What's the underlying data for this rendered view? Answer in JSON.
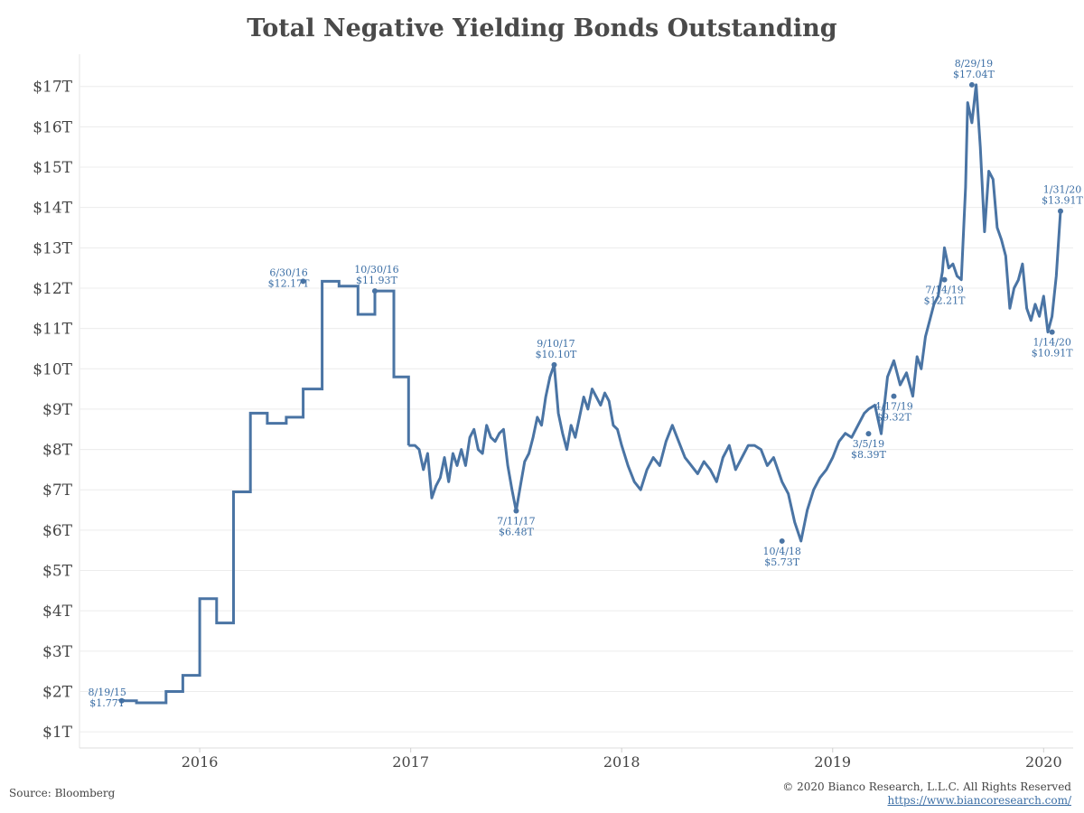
{
  "source": "Source: Bloomberg",
  "copyright": "© 2020 Bianco Research, L.L.C. All Rights Reserved",
  "website": "https://www.biancoresearch.com/",
  "chart_data": {
    "type": "line",
    "title": "Total Negative Yielding Bonds Outstanding",
    "xlabel": "",
    "ylabel": "",
    "ylim": [
      0.6,
      17.8
    ],
    "xlim": [
      2015.43,
      2020.14
    ],
    "line_color": "#4a74a4",
    "y_ticks": [
      {
        "value": 1,
        "label": "$1T"
      },
      {
        "value": 2,
        "label": "$2T"
      },
      {
        "value": 3,
        "label": "$3T"
      },
      {
        "value": 4,
        "label": "$4T"
      },
      {
        "value": 5,
        "label": "$5T"
      },
      {
        "value": 6,
        "label": "$6T"
      },
      {
        "value": 7,
        "label": "$7T"
      },
      {
        "value": 8,
        "label": "$8T"
      },
      {
        "value": 9,
        "label": "$9T"
      },
      {
        "value": 10,
        "label": "$10T"
      },
      {
        "value": 11,
        "label": "$11T"
      },
      {
        "value": 12,
        "label": "$12T"
      },
      {
        "value": 13,
        "label": "$13T"
      },
      {
        "value": 14,
        "label": "$14T"
      },
      {
        "value": 15,
        "label": "$15T"
      },
      {
        "value": 16,
        "label": "$16T"
      },
      {
        "value": 17,
        "label": "$17T"
      }
    ],
    "x_ticks": [
      {
        "value": 2016.0,
        "label": "2016"
      },
      {
        "value": 2017.0,
        "label": "2017"
      },
      {
        "value": 2018.0,
        "label": "2018"
      },
      {
        "value": 2019.0,
        "label": "2019"
      },
      {
        "value": 2020.0,
        "label": "2020"
      }
    ],
    "step_series": {
      "name": "Total Negative Yielding Bonds Outstanding (monthly, 2015-2016)",
      "x": [
        2015.63,
        2015.7,
        2015.76,
        2015.84,
        2015.92,
        2016.0,
        2016.08,
        2016.16,
        2016.24,
        2016.32,
        2016.41,
        2016.49,
        2016.58,
        2016.66,
        2016.75,
        2016.83,
        2016.92
      ],
      "y": [
        1.77,
        1.72,
        1.72,
        2.0,
        2.4,
        4.3,
        3.7,
        6.95,
        8.9,
        8.65,
        8.8,
        9.5,
        12.17,
        12.05,
        11.35,
        11.93,
        9.8
      ]
    },
    "series": [
      {
        "name": "Total Negative Yielding Bonds Outstanding (daily, 2016-2020)",
        "x": [
          2016.99,
          2017.02,
          2017.04,
          2017.06,
          2017.08,
          2017.1,
          2017.12,
          2017.14,
          2017.16,
          2017.18,
          2017.2,
          2017.22,
          2017.24,
          2017.26,
          2017.28,
          2017.3,
          2017.32,
          2017.34,
          2017.36,
          2017.38,
          2017.4,
          2017.42,
          2017.44,
          2017.46,
          2017.48,
          2017.5,
          2017.52,
          2017.54,
          2017.56,
          2017.58,
          2017.6,
          2017.62,
          2017.64,
          2017.66,
          2017.68,
          2017.7,
          2017.72,
          2017.74,
          2017.76,
          2017.78,
          2017.8,
          2017.82,
          2017.84,
          2017.86,
          2017.88,
          2017.9,
          2017.92,
          2017.94,
          2017.96,
          2017.98,
          2018.0,
          2018.03,
          2018.06,
          2018.09,
          2018.12,
          2018.15,
          2018.18,
          2018.21,
          2018.24,
          2018.27,
          2018.3,
          2018.33,
          2018.36,
          2018.39,
          2018.42,
          2018.45,
          2018.48,
          2018.51,
          2018.54,
          2018.57,
          2018.6,
          2018.63,
          2018.66,
          2018.69,
          2018.72,
          2018.76,
          2018.79,
          2018.82,
          2018.85,
          2018.88,
          2018.91,
          2018.94,
          2018.97,
          2019.0,
          2019.03,
          2019.06,
          2019.09,
          2019.12,
          2019.15,
          2019.17,
          2019.2,
          2019.23,
          2019.26,
          2019.29,
          2019.32,
          2019.35,
          2019.38,
          2019.4,
          2019.42,
          2019.44,
          2019.46,
          2019.48,
          2019.5,
          2019.52,
          2019.53,
          2019.55,
          2019.57,
          2019.59,
          2019.61,
          2019.63,
          2019.64,
          2019.66,
          2019.68,
          2019.7,
          2019.72,
          2019.74,
          2019.76,
          2019.78,
          2019.8,
          2019.82,
          2019.84,
          2019.86,
          2019.88,
          2019.9,
          2019.92,
          2019.94,
          2019.96,
          2019.98,
          2020.0,
          2020.02,
          2020.04,
          2020.06,
          2020.08
        ],
        "y": [
          8.1,
          8.1,
          8.0,
          7.5,
          7.9,
          6.8,
          7.1,
          7.3,
          7.8,
          7.2,
          7.9,
          7.6,
          8.0,
          7.6,
          8.3,
          8.5,
          8.0,
          7.9,
          8.6,
          8.3,
          8.2,
          8.4,
          8.5,
          7.6,
          7.0,
          6.48,
          7.1,
          7.7,
          7.9,
          8.3,
          8.8,
          8.6,
          9.3,
          9.8,
          10.1,
          8.9,
          8.4,
          8.0,
          8.6,
          8.3,
          8.8,
          9.3,
          9.0,
          9.5,
          9.3,
          9.1,
          9.4,
          9.2,
          8.6,
          8.5,
          8.1,
          7.6,
          7.2,
          7.0,
          7.5,
          7.8,
          7.6,
          8.2,
          8.6,
          8.2,
          7.8,
          7.6,
          7.4,
          7.7,
          7.5,
          7.2,
          7.8,
          8.1,
          7.5,
          7.8,
          8.1,
          8.1,
          8.0,
          7.6,
          7.8,
          7.2,
          6.9,
          6.2,
          5.73,
          6.5,
          7.0,
          7.3,
          7.5,
          7.8,
          8.2,
          8.4,
          8.3,
          8.6,
          8.9,
          9.0,
          9.1,
          8.39,
          9.8,
          10.2,
          9.6,
          9.9,
          9.32,
          10.3,
          10.0,
          10.8,
          11.2,
          11.6,
          11.8,
          12.4,
          13.0,
          12.5,
          12.6,
          12.3,
          12.21,
          14.5,
          16.6,
          16.1,
          17.04,
          15.5,
          13.4,
          14.9,
          14.7,
          13.5,
          13.2,
          12.8,
          11.5,
          12.0,
          12.2,
          12.6,
          11.5,
          11.2,
          11.6,
          11.3,
          11.8,
          10.91,
          11.3,
          12.3,
          13.91
        ]
      }
    ],
    "annotations": [
      {
        "date": "8/19/15",
        "value": "$1.77T",
        "x": 2015.63,
        "y": 1.77,
        "pos": "left"
      },
      {
        "date": "6/30/16",
        "value": "$12.17T",
        "x": 2016.49,
        "y": 12.17,
        "pos": "left"
      },
      {
        "date": "10/30/16",
        "value": "$11.93T",
        "x": 2016.83,
        "y": 11.93,
        "pos": "above"
      },
      {
        "date": "7/11/17",
        "value": "$6.48T",
        "x": 2017.5,
        "y": 6.48,
        "pos": "below"
      },
      {
        "date": "9/10/17",
        "value": "$10.10T",
        "x": 2017.68,
        "y": 10.1,
        "pos": "above"
      },
      {
        "date": "10/4/18",
        "value": "$5.73T",
        "x": 2018.76,
        "y": 5.73,
        "pos": "below"
      },
      {
        "date": "3/5/19",
        "value": "$8.39T",
        "x": 2019.17,
        "y": 8.39,
        "pos": "below"
      },
      {
        "date": "4/17/19",
        "value": "$9.32T",
        "x": 2019.29,
        "y": 9.32,
        "pos": "below"
      },
      {
        "date": "7/14/19",
        "value": "$12.21T",
        "x": 2019.53,
        "y": 12.21,
        "pos": "below"
      },
      {
        "date": "8/29/19",
        "value": "$17.04T",
        "x": 2019.66,
        "y": 17.04,
        "pos": "above"
      },
      {
        "date": "1/14/20",
        "value": "$10.91T",
        "x": 2020.04,
        "y": 10.91,
        "pos": "below"
      },
      {
        "date": "1/31/20",
        "value": "$13.91T",
        "x": 2020.08,
        "y": 13.91,
        "pos": "above"
      }
    ]
  }
}
